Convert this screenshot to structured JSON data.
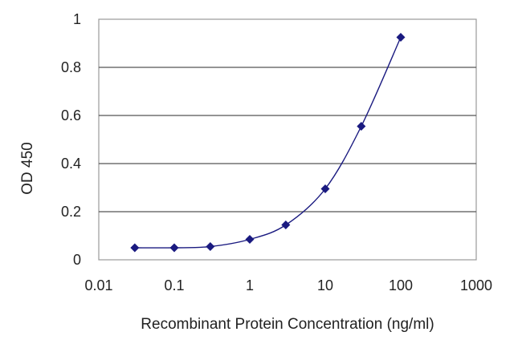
{
  "chart_data": {
    "type": "line",
    "xlabel": "Recombinant Protein Concentration (ng/ml)",
    "ylabel": "OD 450",
    "x_scale": "log",
    "xlim": [
      0.01,
      1000
    ],
    "ylim": [
      0,
      1
    ],
    "x_ticks": [
      "0.01",
      "0.1",
      "1",
      "10",
      "100",
      "1000"
    ],
    "y_ticks": [
      "0",
      "0.2",
      "0.4",
      "0.6",
      "0.8",
      "1"
    ],
    "grid": "horizontal",
    "legend": "none",
    "colors": {
      "series": "#1a1a80",
      "grid": "#555555",
      "axis": "#999999"
    },
    "series": [
      {
        "x": [
          0.03,
          0.1,
          0.3,
          1,
          3,
          10,
          30,
          100
        ],
        "y": [
          0.05,
          0.05,
          0.055,
          0.085,
          0.145,
          0.295,
          0.555,
          0.925
        ]
      }
    ]
  }
}
